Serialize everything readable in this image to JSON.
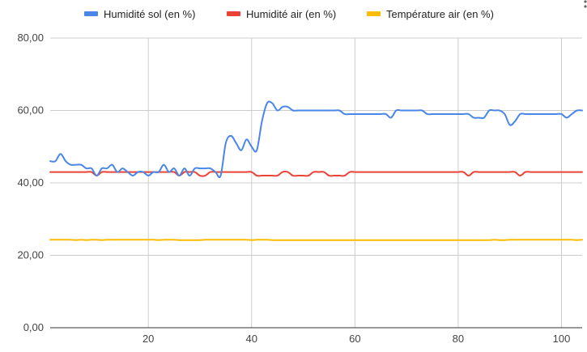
{
  "chart_data": {
    "type": "line",
    "title": "",
    "xlabel": "",
    "ylabel": "",
    "xlim": [
      1,
      104
    ],
    "ylim": [
      0,
      80
    ],
    "x_ticks": [
      20,
      40,
      60,
      80,
      100
    ],
    "x_tick_labels": [
      "20",
      "40",
      "60",
      "80",
      "100"
    ],
    "y_ticks": [
      0,
      20,
      40,
      60,
      80
    ],
    "y_tick_labels": [
      "0,00",
      "20,00",
      "40,00",
      "60,00",
      "80,00"
    ],
    "grid": true,
    "legend_position": "top",
    "x": [
      1,
      2,
      3,
      4,
      5,
      6,
      7,
      8,
      9,
      10,
      11,
      12,
      13,
      14,
      15,
      16,
      17,
      18,
      19,
      20,
      21,
      22,
      23,
      24,
      25,
      26,
      27,
      28,
      29,
      30,
      31,
      32,
      33,
      34,
      35,
      36,
      37,
      38,
      39,
      40,
      41,
      42,
      43,
      44,
      45,
      46,
      47,
      48,
      49,
      50,
      51,
      52,
      53,
      54,
      55,
      56,
      57,
      58,
      59,
      60,
      61,
      62,
      63,
      64,
      65,
      66,
      67,
      68,
      69,
      70,
      71,
      72,
      73,
      74,
      75,
      76,
      77,
      78,
      79,
      80,
      81,
      82,
      83,
      84,
      85,
      86,
      87,
      88,
      89,
      90,
      91,
      92,
      93,
      94,
      95,
      96,
      97,
      98,
      99,
      100,
      101,
      102,
      103,
      104
    ],
    "series": [
      {
        "name": "Humidité sol (en %)",
        "color": "#4a86e8",
        "values": [
          46,
          46,
          48,
          46,
          45,
          45,
          45,
          44,
          44,
          42,
          44,
          44,
          45,
          43,
          44,
          43,
          42,
          43,
          43,
          42,
          43,
          43,
          45,
          43,
          44,
          42,
          44,
          42,
          44,
          44,
          44,
          44,
          43,
          42,
          51,
          53,
          51,
          49,
          52,
          50,
          49,
          57,
          62,
          62,
          60,
          61,
          61,
          60,
          60,
          60,
          60,
          60,
          60,
          60,
          60,
          60,
          60,
          59,
          59,
          59,
          59,
          59,
          59,
          59,
          59,
          59,
          58,
          60,
          60,
          60,
          60,
          60,
          60,
          59,
          59,
          59,
          59,
          59,
          59,
          59,
          59,
          59,
          58,
          58,
          58,
          60,
          60,
          60,
          59,
          56,
          57,
          59,
          59,
          59,
          59,
          59,
          59,
          59,
          59,
          59,
          58,
          59,
          60,
          60
        ]
      },
      {
        "name": "Humidité air (en %)",
        "color": "#ea4335",
        "values": [
          43,
          43,
          43,
          43,
          43,
          43,
          43,
          43,
          43,
          42,
          43,
          43,
          43,
          43,
          43,
          43,
          43,
          43,
          43,
          43,
          43,
          43,
          43,
          43,
          43,
          42,
          43,
          43,
          43,
          42,
          42,
          43,
          43,
          43,
          43,
          43,
          43,
          43,
          43,
          43,
          42,
          42,
          42,
          42,
          42,
          43,
          43,
          42,
          42,
          42,
          42,
          43,
          43,
          43,
          42,
          42,
          42,
          42,
          43,
          43,
          43,
          43,
          43,
          43,
          43,
          43,
          43,
          43,
          43,
          43,
          43,
          43,
          43,
          43,
          43,
          43,
          43,
          43,
          43,
          43,
          43,
          42,
          43,
          43,
          43,
          43,
          43,
          43,
          43,
          43,
          43,
          42,
          43,
          43,
          43,
          43,
          43,
          43,
          43,
          43,
          43,
          43,
          43,
          43
        ]
      },
      {
        "name": "Température air (en %)",
        "color": "#fbbc04",
        "values": [
          24.3,
          24.3,
          24.3,
          24.3,
          24.3,
          24.2,
          24.3,
          24.2,
          24.3,
          24.3,
          24.2,
          24.3,
          24.3,
          24.3,
          24.3,
          24.3,
          24.3,
          24.3,
          24.3,
          24.3,
          24.3,
          24.2,
          24.3,
          24.3,
          24.3,
          24.2,
          24.2,
          24.2,
          24.2,
          24.2,
          24.3,
          24.3,
          24.3,
          24.3,
          24.3,
          24.3,
          24.3,
          24.3,
          24.3,
          24.2,
          24.3,
          24.3,
          24.3,
          24.2,
          24.2,
          24.2,
          24.2,
          24.2,
          24.2,
          24.2,
          24.2,
          24.2,
          24.2,
          24.2,
          24.2,
          24.2,
          24.2,
          24.2,
          24.2,
          24.2,
          24.2,
          24.2,
          24.2,
          24.2,
          24.2,
          24.2,
          24.2,
          24.2,
          24.2,
          24.2,
          24.2,
          24.2,
          24.2,
          24.2,
          24.2,
          24.2,
          24.2,
          24.2,
          24.2,
          24.2,
          24.2,
          24.2,
          24.2,
          24.2,
          24.2,
          24.2,
          24.3,
          24.2,
          24.2,
          24.3,
          24.3,
          24.3,
          24.3,
          24.3,
          24.3,
          24.3,
          24.3,
          24.3,
          24.3,
          24.3,
          24.3,
          24.3,
          24.2,
          24.3
        ]
      }
    ]
  }
}
